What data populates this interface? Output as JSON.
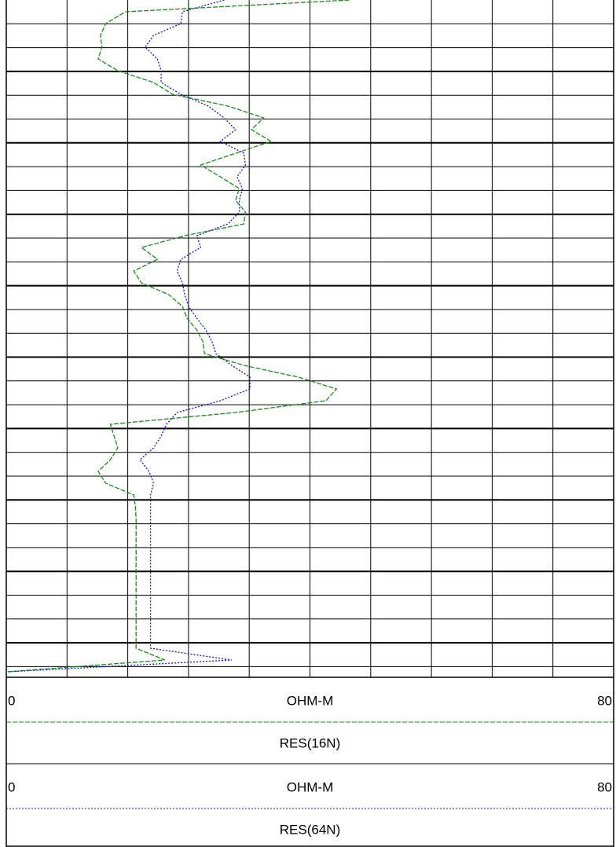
{
  "chart_data": {
    "type": "well-log",
    "grid": true,
    "series": [
      {
        "name": "RES(16N)",
        "color": "#1a8a1a",
        "style": "dashed",
        "unit": "OHM-M",
        "xlim": [
          0,
          80
        ],
        "xticks": [
          0,
          80
        ],
        "values": [
          45.2,
          15.7,
          13.1,
          12.4,
          12.6,
          12.1,
          14.7,
          19.4,
          21.9,
          29.2,
          33.9,
          32.3,
          34.9,
          30.2,
          25.6,
          28.2,
          30.7,
          30.2,
          31.5,
          31.3,
          23.5,
          17.8,
          19.9,
          16.8,
          17.8,
          21.4,
          23.2,
          23.8,
          25.1,
          25.9,
          26.1,
          31.3,
          38.5,
          43.5,
          42.1,
          30.2,
          13.7,
          14.2,
          14.7,
          13.7,
          12.1,
          13.1,
          16.8,
          17.0,
          17.1,
          17.1,
          17.1,
          17.1,
          17.1,
          17.1,
          17.1,
          17.1,
          17.1,
          17.1,
          17.1,
          17.1,
          20.9,
          0.2
        ]
      },
      {
        "name": "RES(64N)",
        "color": "#1010d0",
        "style": "dotted",
        "unit": "OHM-M",
        "xlim": [
          0,
          80
        ],
        "xticks": [
          0,
          80
        ],
        "values": [
          28.7,
          23.2,
          23.0,
          19.4,
          18.3,
          19.9,
          20.4,
          20.4,
          23.0,
          26.6,
          28.7,
          30.2,
          28.2,
          31.3,
          31.5,
          30.4,
          31.1,
          30.7,
          30.7,
          29.2,
          25.1,
          25.6,
          23.0,
          22.5,
          23.2,
          23.5,
          24.0,
          25.1,
          26.3,
          27.1,
          27.6,
          29.7,
          32.1,
          32.1,
          28.2,
          22.5,
          21.1,
          20.4,
          19.4,
          17.6,
          18.8,
          19.4,
          19.0,
          19.0,
          19.0,
          19.0,
          19.0,
          19.0,
          19.0,
          19.0,
          19.0,
          19.0,
          19.0,
          19.0,
          19.0,
          19.0,
          29.7,
          0.2
        ]
      }
    ]
  }
}
